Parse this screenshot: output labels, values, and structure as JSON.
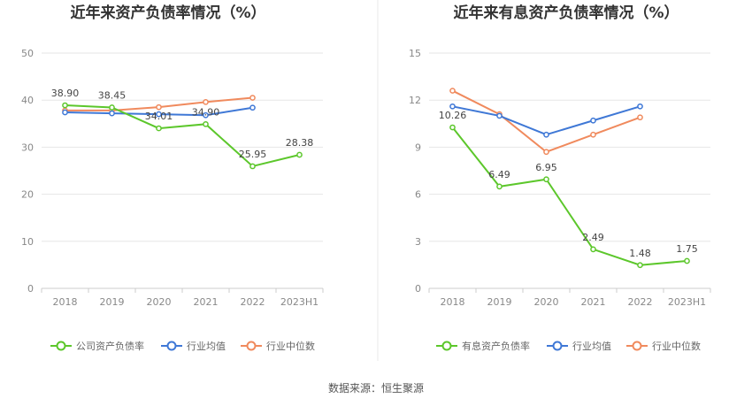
{
  "colors": {
    "company": "#5cc72b",
    "industry_avg": "#3f78d6",
    "industry_median": "#f08a5d",
    "grid": "#e6e6e6",
    "axis": "#cccccc",
    "divider": "#e8e8e8"
  },
  "footer": {
    "source": "数据来源：恒生聚源"
  },
  "chart_data": [
    {
      "type": "line",
      "title": "近年来资产负债率情况（%）",
      "categories": [
        "2018",
        "2019",
        "2020",
        "2021",
        "2022",
        "2023H1"
      ],
      "ylim": [
        0,
        50
      ],
      "yticks": [
        0,
        10,
        20,
        30,
        40,
        50
      ],
      "series": [
        {
          "name": "公司资产负债率",
          "color_key": "company",
          "values": [
            38.9,
            38.45,
            34.01,
            34.9,
            25.95,
            28.38
          ],
          "labels": [
            "38.90",
            "38.45",
            "34.01",
            "34.90",
            "25.95",
            "28.38"
          ]
        },
        {
          "name": "行业均值",
          "color_key": "industry_avg",
          "values": [
            37.4,
            37.2,
            37.0,
            36.8,
            38.4,
            null
          ]
        },
        {
          "name": "行业中位数",
          "color_key": "industry_median",
          "values": [
            37.8,
            37.8,
            38.5,
            39.6,
            40.5,
            null
          ]
        }
      ],
      "legend": "bottom"
    },
    {
      "type": "line",
      "title": "近年来有息资产负债率情况（%）",
      "categories": [
        "2018",
        "2019",
        "2020",
        "2021",
        "2022",
        "2023H1"
      ],
      "ylim": [
        0,
        15
      ],
      "yticks": [
        0,
        3,
        6,
        9,
        12,
        15
      ],
      "series": [
        {
          "name": "有息资产负债率",
          "color_key": "company",
          "values": [
            10.26,
            6.49,
            6.95,
            2.49,
            1.48,
            1.75
          ],
          "labels": [
            "10.26",
            "6.49",
            "6.95",
            "2.49",
            "1.48",
            "1.75"
          ]
        },
        {
          "name": "行业均值",
          "color_key": "industry_avg",
          "values": [
            11.6,
            11.0,
            9.8,
            10.7,
            11.6,
            null
          ]
        },
        {
          "name": "行业中位数",
          "color_key": "industry_median",
          "values": [
            12.6,
            11.1,
            8.7,
            9.8,
            10.9,
            null
          ]
        }
      ],
      "legend": "bottom"
    }
  ]
}
